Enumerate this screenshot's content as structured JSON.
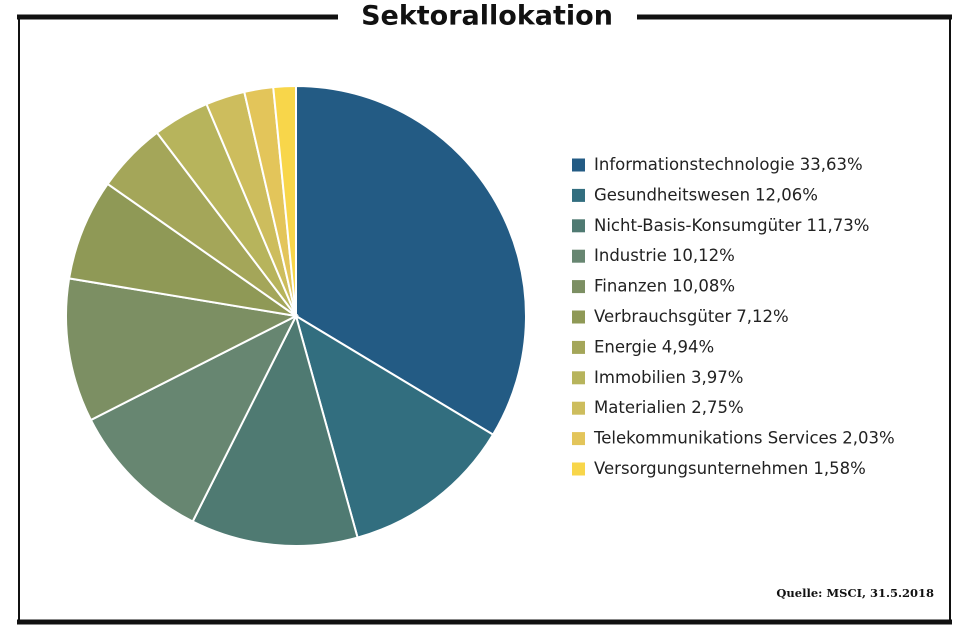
{
  "chart_data": {
    "type": "pie",
    "title": "Sektorallokation",
    "categories": [
      "Informationstechnologie",
      "Gesundheitswesen",
      "Nicht-Basis-Konsumgüter",
      "Industrie",
      "Finanzen",
      "Verbrauchsgüter",
      "Energie",
      "Immobilien",
      "Materialien",
      "Telekommunikations Services",
      "Versorgungsunternehmen"
    ],
    "values": [
      33.63,
      12.06,
      11.73,
      10.12,
      10.08,
      7.12,
      4.94,
      3.97,
      2.75,
      2.03,
      1.58
    ],
    "value_labels": [
      "33,63%",
      "12,06%",
      "11,73%",
      "10,12%",
      "10,08%",
      "7,12%",
      "4,94%",
      "3,97%",
      "2,75%",
      "2,03%",
      "1,58%"
    ],
    "colors": [
      "#235b84",
      "#326e7f",
      "#4f7a72",
      "#678671",
      "#7c8f63",
      "#8f9956",
      "#a4a659",
      "#b7b45c",
      "#cdbd5d",
      "#e3c55a",
      "#f8d64a"
    ],
    "legend_position": "right",
    "source": "Quelle: MSCI, 31.5.2018"
  }
}
